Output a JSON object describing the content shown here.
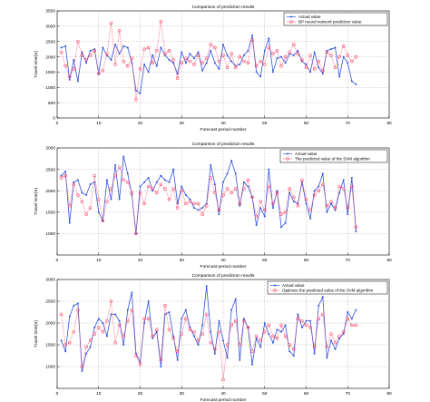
{
  "chart_data": [
    {
      "type": "line",
      "title": "Comparison of prediction results",
      "xlabel": "Forecast period number",
      "ylabel": "Travel time(S)",
      "xlim": [
        0,
        80
      ],
      "ylim": [
        0,
        3500
      ],
      "xticks": [
        0,
        10,
        20,
        30,
        40,
        50,
        60,
        70,
        80
      ],
      "yticks": [
        0,
        500,
        1000,
        1500,
        2000,
        2500,
        3000,
        3500
      ],
      "grid": true,
      "legend_position": "top-right",
      "series": [
        {
          "name": "Actual value",
          "color": "#3355dd",
          "marker": "dot",
          "x": [
            1,
            2,
            3,
            4,
            5,
            6,
            7,
            8,
            9,
            10,
            11,
            12,
            13,
            14,
            15,
            16,
            17,
            18,
            19,
            20,
            21,
            22,
            23,
            24,
            25,
            26,
            27,
            28,
            29,
            30,
            31,
            32,
            33,
            34,
            35,
            36,
            37,
            38,
            39,
            40,
            41,
            42,
            43,
            44,
            45,
            46,
            47,
            48,
            49,
            50,
            51,
            52,
            53,
            54,
            55,
            56,
            57,
            58,
            59,
            60,
            61,
            62,
            63,
            64,
            65,
            66,
            67,
            68,
            69,
            70,
            71,
            72
          ],
          "y": [
            2300,
            2350,
            1250,
            1900,
            1200,
            2150,
            1800,
            2200,
            2250,
            1450,
            2300,
            2050,
            1900,
            2400,
            2100,
            2350,
            2300,
            1800,
            900,
            800,
            1750,
            1500,
            2050,
            1700,
            2300,
            2050,
            1900,
            1800,
            1450,
            2150,
            1800,
            2100,
            1950,
            2150,
            1550,
            1800,
            2200,
            1800,
            1600,
            2400,
            2050,
            1850,
            1700,
            1750,
            2050,
            2200,
            2700,
            1500,
            1350,
            2200,
            2600,
            1500,
            1950,
            2000,
            1800,
            2100,
            2050,
            2200,
            1850,
            1750,
            1500,
            2150,
            1650,
            1450,
            2200,
            2250,
            2300,
            1350,
            2000,
            1800,
            1200,
            1100
          ]
        },
        {
          "name": "BP neural network prediction value",
          "color": "#ff4466",
          "marker": "circle",
          "x": [
            1,
            2,
            3,
            4,
            5,
            6,
            7,
            8,
            9,
            10,
            11,
            12,
            13,
            14,
            15,
            16,
            17,
            18,
            19,
            20,
            21,
            22,
            23,
            24,
            25,
            26,
            27,
            28,
            29,
            30,
            31,
            32,
            33,
            34,
            35,
            36,
            37,
            38,
            39,
            40,
            41,
            42,
            43,
            44,
            45,
            46,
            47,
            48,
            49,
            50,
            51,
            52,
            53,
            54,
            55,
            56,
            57,
            58,
            59,
            60,
            61,
            62,
            63,
            64,
            65,
            66,
            67,
            68,
            69,
            70,
            71,
            72
          ],
          "y": [
            2150,
            1700,
            1350,
            1600,
            2500,
            2050,
            1900,
            2050,
            2200,
            1450,
            1550,
            2100,
            3100,
            1750,
            2850,
            1850,
            1700,
            1950,
            600,
            1600,
            2250,
            2300,
            1800,
            2200,
            3150,
            2100,
            2200,
            1900,
            1300,
            1800,
            1950,
            1850,
            1750,
            2050,
            1800,
            1950,
            2400,
            2300,
            1850,
            2050,
            1650,
            2100,
            1650,
            2000,
            1850,
            1800,
            2550,
            1700,
            1850,
            1750,
            2300,
            2100,
            2200,
            1700,
            2000,
            2150,
            2400,
            2100,
            1900,
            1650,
            2050,
            1600,
            1850,
            1550,
            2150,
            2050,
            1650,
            2000,
            2350,
            2050,
            1850,
            2000
          ]
        }
      ]
    },
    {
      "type": "line",
      "title": "Comparison of prediction results",
      "xlabel": "Forecast period number",
      "ylabel": "Travel time(S)",
      "xlim": [
        0,
        80
      ],
      "ylim": [
        500,
        3000
      ],
      "xticks": [
        0,
        10,
        20,
        30,
        40,
        50,
        60,
        70,
        80
      ],
      "yticks": [
        1000,
        1500,
        2000,
        2500,
        3000
      ],
      "grid": true,
      "legend_position": "top-right",
      "series": [
        {
          "name": "Actual value",
          "color": "#3355dd",
          "marker": "dot",
          "x": [
            1,
            2,
            3,
            4,
            5,
            6,
            7,
            8,
            9,
            10,
            11,
            12,
            13,
            14,
            15,
            16,
            17,
            18,
            19,
            20,
            21,
            22,
            23,
            24,
            25,
            26,
            27,
            28,
            29,
            30,
            31,
            32,
            33,
            34,
            35,
            36,
            37,
            38,
            39,
            40,
            41,
            42,
            43,
            44,
            45,
            46,
            47,
            48,
            49,
            50,
            51,
            52,
            53,
            54,
            55,
            56,
            57,
            58,
            59,
            60,
            61,
            62,
            63,
            64,
            65,
            66,
            67,
            68,
            69,
            70,
            71,
            72
          ],
          "y": [
            2350,
            2450,
            1250,
            2200,
            2250,
            1950,
            1900,
            2150,
            2200,
            1500,
            1300,
            2250,
            1800,
            2600,
            1800,
            2800,
            2400,
            1900,
            1000,
            2100,
            2200,
            2300,
            2000,
            2200,
            2350,
            2250,
            2200,
            2500,
            1700,
            2100,
            1900,
            1800,
            1600,
            1550,
            1600,
            1700,
            2600,
            2150,
            1450,
            2200,
            2400,
            2700,
            2400,
            1650,
            2200,
            2100,
            1850,
            1200,
            1600,
            1400,
            2500,
            1600,
            2000,
            1150,
            1250,
            1950,
            1750,
            1700,
            2200,
            1700,
            1350,
            2000,
            2100,
            2400,
            1500,
            1700,
            1550,
            1950,
            2250,
            1450,
            2300,
            1050
          ]
        },
        {
          "name": "The predicted value of the SVM algorithm",
          "color": "#ff4466",
          "marker": "circle",
          "x": [
            1,
            2,
            3,
            4,
            5,
            6,
            7,
            8,
            9,
            10,
            11,
            12,
            13,
            14,
            15,
            16,
            17,
            18,
            19,
            20,
            21,
            22,
            23,
            24,
            25,
            26,
            27,
            28,
            29,
            30,
            31,
            32,
            33,
            34,
            35,
            36,
            37,
            38,
            39,
            40,
            41,
            42,
            43,
            44,
            45,
            46,
            47,
            48,
            49,
            50,
            51,
            52,
            53,
            54,
            55,
            56,
            57,
            58,
            59,
            60,
            61,
            62,
            63,
            64,
            65,
            66,
            67,
            68,
            69,
            70,
            71,
            72
          ],
          "y": [
            2300,
            2350,
            1650,
            2150,
            1900,
            1750,
            1450,
            1600,
            2350,
            1800,
            1300,
            1750,
            2050,
            2350,
            2550,
            2250,
            2200,
            1950,
            1000,
            1950,
            1700,
            2100,
            2050,
            1950,
            2150,
            2050,
            1800,
            2050,
            1600,
            2000,
            1700,
            1750,
            1700,
            1700,
            1450,
            1650,
            2300,
            1950,
            1550,
            1900,
            2050,
            1950,
            2050,
            1700,
            2050,
            2250,
            1850,
            1400,
            1750,
            1550,
            2100,
            1700,
            1950,
            1450,
            1500,
            2050,
            1850,
            1650,
            2250,
            1800,
            1550,
            1900,
            2000,
            2150,
            1650,
            1750,
            1600,
            2100,
            2050,
            1600,
            2100,
            1150
          ]
        }
      ]
    },
    {
      "type": "line",
      "title": "Comparison of prediction results",
      "xlabel": "Forecast period number",
      "ylabel": "Travel time(S)",
      "xlim": [
        0,
        80
      ],
      "ylim": [
        500,
        3000
      ],
      "xticks": [
        0,
        10,
        20,
        30,
        40,
        50,
        60,
        70,
        80
      ],
      "yticks": [
        1000,
        1500,
        2000,
        2500,
        3000
      ],
      "grid": true,
      "legend_position": "top-right",
      "series": [
        {
          "name": "Actual value",
          "color": "#3355dd",
          "marker": "dot",
          "x": [
            1,
            2,
            3,
            4,
            5,
            6,
            7,
            8,
            9,
            10,
            11,
            12,
            13,
            14,
            15,
            16,
            17,
            18,
            19,
            20,
            21,
            22,
            23,
            24,
            25,
            26,
            27,
            28,
            29,
            30,
            31,
            32,
            33,
            34,
            35,
            36,
            37,
            38,
            39,
            40,
            41,
            42,
            43,
            44,
            45,
            46,
            47,
            48,
            49,
            50,
            51,
            52,
            53,
            54,
            55,
            56,
            57,
            58,
            59,
            60,
            61,
            62,
            63,
            64,
            65,
            66,
            67,
            68,
            69,
            70,
            71,
            72
          ],
          "y": [
            1600,
            1350,
            2150,
            2400,
            2450,
            900,
            1300,
            1450,
            1900,
            2100,
            2000,
            1700,
            2200,
            2200,
            2050,
            1500,
            2300,
            2700,
            1300,
            1100,
            2000,
            2500,
            1650,
            1800,
            1000,
            2200,
            2250,
            1700,
            1150,
            2100,
            2300,
            1900,
            1700,
            1500,
            1950,
            2850,
            1800,
            1300,
            2050,
            1600,
            1200,
            2300,
            2550,
            1150,
            2100,
            1900,
            1050,
            1650,
            1450,
            2000,
            1750,
            1550,
            1850,
            1800,
            1950,
            1350,
            1250,
            2200,
            1900,
            2050,
            2050,
            1300,
            2400,
            2600,
            1200,
            1600,
            1400,
            1650,
            1750,
            2250,
            2100,
            2300
          ]
        },
        {
          "name": "Optimize the predicted value of the SVM algorithm",
          "color": "#ff4466",
          "marker": "circle",
          "x": [
            1,
            2,
            3,
            4,
            5,
            6,
            7,
            8,
            9,
            10,
            11,
            12,
            13,
            14,
            15,
            16,
            17,
            18,
            19,
            20,
            21,
            22,
            23,
            24,
            25,
            26,
            27,
            28,
            29,
            30,
            31,
            32,
            33,
            34,
            35,
            36,
            37,
            38,
            39,
            40,
            41,
            42,
            43,
            44,
            45,
            46,
            47,
            48,
            49,
            50,
            51,
            52,
            53,
            54,
            55,
            56,
            57,
            58,
            59,
            60,
            61,
            62,
            63,
            64,
            65,
            66,
            67,
            68,
            69,
            70,
            71,
            72
          ],
          "y": [
            2200,
            1500,
            1550,
            1800,
            2300,
            1000,
            1450,
            1600,
            1750,
            1900,
            1800,
            2050,
            2500,
            1550,
            1950,
            1700,
            2050,
            2300,
            1250,
            1050,
            2100,
            2100,
            1700,
            1850,
            1150,
            2400,
            1850,
            1650,
            1350,
            1750,
            2100,
            1850,
            1800,
            1600,
            1750,
            2200,
            1550,
            1400,
            1800,
            700,
            1500,
            1950,
            2050,
            1500,
            2050,
            1900,
            1350,
            1700,
            1600,
            1800,
            1950,
            1700,
            1650,
            1950,
            1700,
            1500,
            1400,
            2100,
            2050,
            1950,
            1900,
            1450,
            2100,
            2200,
            1450,
            1750,
            1550,
            1700,
            1800,
            2100,
            1950,
            1950
          ]
        }
      ]
    }
  ]
}
